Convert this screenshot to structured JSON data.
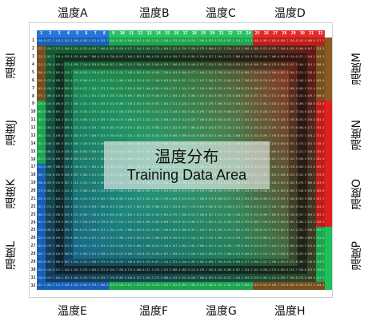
{
  "zones": {
    "top": [
      "温度A",
      "温度B",
      "温度C",
      "温度D"
    ],
    "bottom": [
      "温度E",
      "温度F",
      "温度G",
      "温度H"
    ],
    "left": [
      "温度I",
      "温度J",
      "温度K",
      "温度L"
    ],
    "right": [
      "温度M",
      "温度N",
      "温度O",
      "温度P"
    ]
  },
  "overlay": {
    "title": "温度分布",
    "subtitle": "Training Data Area"
  },
  "grid": {
    "rows": 32,
    "cols": 32,
    "column_numbers": [
      "1",
      "2",
      "3",
      "4",
      "5",
      "6",
      "7",
      "8",
      "9",
      "10",
      "11",
      "12",
      "13",
      "14",
      "15",
      "16",
      "17",
      "18",
      "19",
      "20",
      "21",
      "22",
      "23",
      "24",
      "25",
      "26",
      "27",
      "28",
      "29",
      "30",
      "31",
      "32"
    ],
    "row_numbers": [
      "1",
      "2",
      "3",
      "4",
      "5",
      "6",
      "7",
      "8",
      "9",
      "10",
      "11",
      "12",
      "13",
      "14",
      "15",
      "16",
      "17",
      "18",
      "19",
      "20",
      "21",
      "22",
      "23",
      "24",
      "25",
      "26",
      "27",
      "28",
      "29",
      "30",
      "31",
      "32"
    ]
  },
  "colors": {
    "blue": "#1a6fd6",
    "green": "#1fbf5a",
    "red": "#e0201c",
    "brown": "#8a5a22",
    "dark": "#0a0a0a"
  }
}
